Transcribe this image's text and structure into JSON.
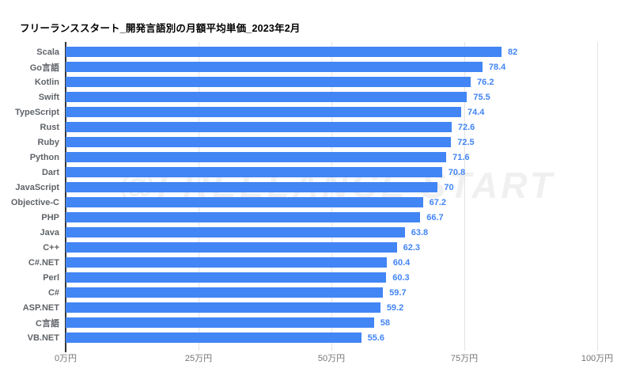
{
  "title": "フリーランススタート_開発言語別の月額平均単価_2023年2月",
  "watermark": "@FREELANCE START",
  "chart_data": {
    "type": "bar",
    "orientation": "horizontal",
    "title": "フリーランススタート_開発言語別の月額平均単価_2023年2月",
    "categories": [
      "Scala",
      "Go言語",
      "Kotlin",
      "Swift",
      "TypeScript",
      "Rust",
      "Ruby",
      "Python",
      "Dart",
      "JavaScript",
      "Objective-C",
      "PHP",
      "Java",
      "C++",
      "C#.NET",
      "Perl",
      "C#",
      "ASP.NET",
      "C言語",
      "VB.NET"
    ],
    "values": [
      82,
      78.4,
      76.2,
      75.5,
      74.4,
      72.6,
      72.5,
      71.6,
      70.8,
      70,
      67.2,
      66.7,
      63.8,
      62.3,
      60.4,
      60.3,
      59.7,
      59.2,
      58,
      55.6
    ],
    "value_labels": [
      "82",
      "78.4",
      "76.2",
      "75.5",
      "74.4",
      "72.6",
      "72.5",
      "71.6",
      "70.8",
      "70",
      "67.2",
      "66.7",
      "63.8",
      "62.3",
      "60.4",
      "60.3",
      "59.7",
      "59.2",
      "58",
      "55.6"
    ],
    "x_ticks": [
      "0万円",
      "25万円",
      "50万円",
      "75万円",
      "100万円"
    ],
    "x_tick_positions": [
      0,
      25,
      50,
      75,
      100
    ],
    "xlim": [
      0,
      100
    ],
    "xlabel": "",
    "ylabel": "",
    "legend": "none",
    "grid": true,
    "unit": "万円",
    "bar_color": "#4285F4",
    "value_label_color": "#4285F4",
    "category_label_color": "#5f6368",
    "axis_label_color": "#757575",
    "gridline_color": "#e3e3e3",
    "axis_line_color": "#333333",
    "background_color": "#ffffff"
  }
}
